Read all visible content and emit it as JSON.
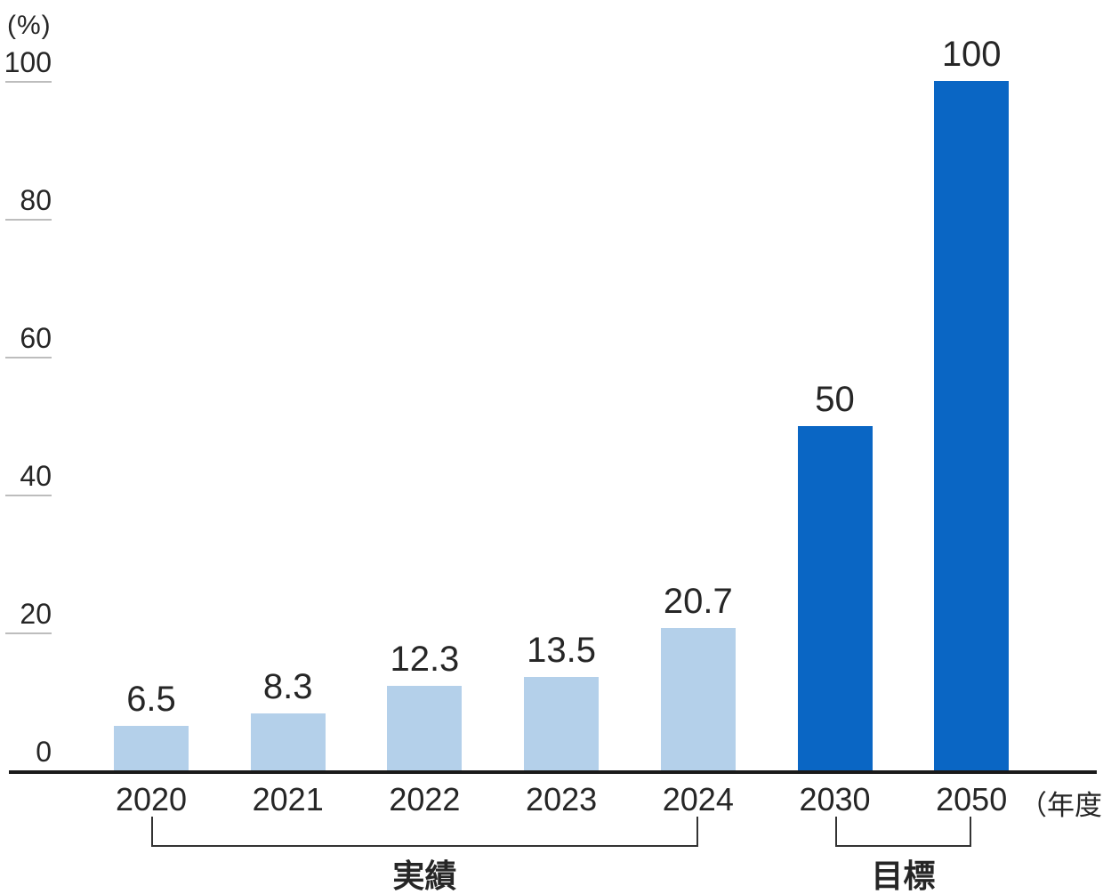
{
  "chart_data": {
    "type": "bar",
    "title": "",
    "ylabel_unit": "(%)",
    "xlabel_unit": "（年度）",
    "categories": [
      "2020",
      "2021",
      "2022",
      "2023",
      "2024",
      "2030",
      "2050"
    ],
    "values": [
      6.5,
      8.3,
      12.3,
      13.5,
      20.7,
      50,
      100
    ],
    "value_labels": [
      "6.5",
      "8.3",
      "12.3",
      "13.5",
      "20.7",
      "50",
      "100"
    ],
    "bar_series": [
      "actual",
      "actual",
      "actual",
      "actual",
      "actual",
      "target",
      "target"
    ],
    "series": [
      {
        "name": "actual",
        "label": "実績",
        "color": "#b4d0ea",
        "categories": [
          "2020",
          "2021",
          "2022",
          "2023",
          "2024"
        ],
        "values": [
          6.5,
          8.3,
          12.3,
          13.5,
          20.7
        ]
      },
      {
        "name": "target",
        "label": "目標",
        "color": "#0a66c4",
        "categories": [
          "2030",
          "2050"
        ],
        "values": [
          50,
          100
        ]
      }
    ],
    "groups": [
      {
        "label": "実績",
        "start": "2020",
        "end": "2024"
      },
      {
        "label": "目標",
        "start": "2030",
        "end": "2050"
      }
    ],
    "yticks": [
      0,
      20,
      40,
      60,
      80,
      100
    ],
    "ylim": [
      0,
      100
    ],
    "legend": "none",
    "grid": "y-tick-underlines-only",
    "colors": {
      "actual_bar": "#b4d0ea",
      "target_bar": "#0a66c4",
      "axis": "#1a1a1a",
      "tick_line": "#bdbdbd",
      "text": "#262626"
    }
  }
}
